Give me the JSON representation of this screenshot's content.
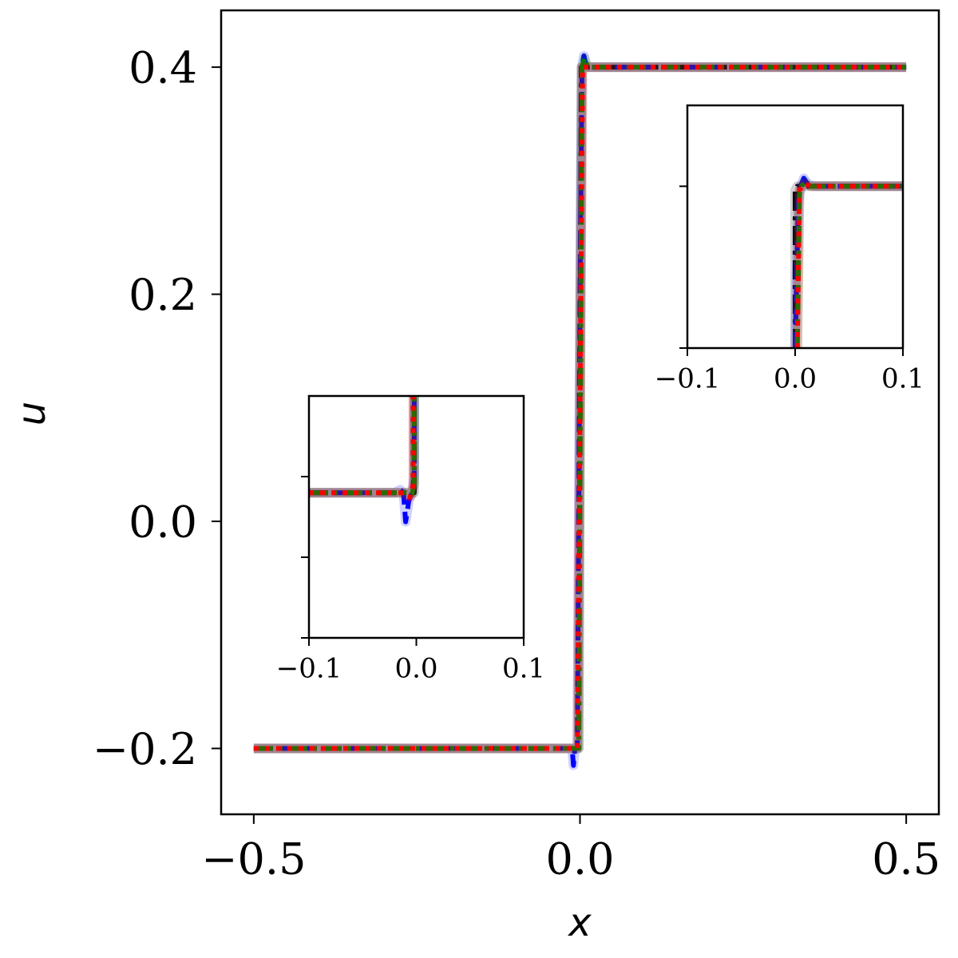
{
  "chart_data": [
    {
      "type": "line",
      "xlabel": "x",
      "ylabel": "u",
      "xlim": [
        -0.55,
        0.55
      ],
      "ylim": [
        -0.258,
        0.45
      ],
      "xticks": [
        -0.5,
        0.0,
        0.5
      ],
      "xtick_labels": [
        "−0.5",
        "0.0",
        "0.5"
      ],
      "yticks": [
        -0.2,
        0.0,
        0.2,
        0.4
      ],
      "ytick_labels": [
        "−0.2",
        "0.0",
        "0.2",
        "0.4"
      ],
      "grid": false,
      "legend": "none",
      "series": [
        {
          "color": "#000000",
          "style": "dashdot",
          "x": [
            -0.5,
            -0.002,
            0.002,
            0.5
          ],
          "y": [
            -0.2,
            -0.2,
            0.4,
            0.4
          ]
        },
        {
          "color": "#0000ff",
          "style": "dashed",
          "x": [
            -0.5,
            -0.012,
            -0.01,
            -0.008,
            -0.004,
            0.0,
            0.003,
            0.006,
            0.01,
            0.5
          ],
          "y": [
            -0.2,
            -0.2,
            -0.215,
            -0.2,
            -0.2,
            0.2,
            0.4,
            0.41,
            0.4,
            0.4
          ]
        },
        {
          "color": "#008000",
          "style": "dashdot",
          "x": [
            -0.5,
            -0.006,
            -0.002,
            0.003,
            0.007,
            0.012,
            0.5
          ],
          "y": [
            -0.2,
            -0.2,
            -0.2,
            0.4,
            0.408,
            0.4,
            0.4
          ]
        },
        {
          "color": "#ff0000",
          "style": "dotted",
          "x": [
            -0.5,
            -0.004,
            0.0,
            0.004,
            0.5
          ],
          "y": [
            -0.2,
            -0.2,
            0.1,
            0.4,
            0.4
          ]
        }
      ]
    },
    {
      "type": "line",
      "xlim": [
        -0.1,
        0.1
      ],
      "ylim": [
        -0.29,
        -0.14
      ],
      "xticks": [
        -0.1,
        0.0,
        0.1
      ],
      "xtick_labels": [
        "−0.1",
        "0.0",
        "0.1"
      ],
      "yticks": [
        -0.29,
        -0.24,
        -0.19
      ],
      "ytick_labels": [],
      "grid": false,
      "series": [
        {
          "color": "#000000",
          "style": "dashdot",
          "x": [
            -0.1,
            -0.015,
            -0.002,
            -0.002,
            -0.001
          ],
          "y": [
            -0.2,
            -0.2,
            -0.2,
            -0.15,
            0.0
          ]
        },
        {
          "color": "#0000ff",
          "style": "dashed",
          "x": [
            -0.1,
            -0.02,
            -0.015,
            -0.012,
            -0.01,
            -0.007,
            -0.004,
            -0.002,
            -0.002
          ],
          "y": [
            -0.2,
            -0.2,
            -0.198,
            -0.2,
            -0.218,
            -0.205,
            -0.2,
            -0.19,
            0.0
          ]
        },
        {
          "color": "#008000",
          "style": "dashdot",
          "x": [
            -0.1,
            -0.01,
            -0.004,
            -0.002,
            -0.002
          ],
          "y": [
            -0.2,
            -0.2,
            -0.201,
            -0.195,
            0.0
          ]
        },
        {
          "color": "#ff0000",
          "style": "dotted",
          "x": [
            -0.1,
            -0.012,
            -0.006,
            -0.003,
            -0.003
          ],
          "y": [
            -0.2,
            -0.2,
            -0.203,
            -0.195,
            0.0
          ]
        }
      ]
    },
    {
      "type": "line",
      "xlim": [
        -0.1,
        0.1
      ],
      "ylim": [
        0.2,
        0.5
      ],
      "xticks": [
        -0.1,
        0.0,
        0.1
      ],
      "xtick_labels": [
        "−0.1",
        "0.0",
        "0.1"
      ],
      "yticks": [
        0.2,
        0.4
      ],
      "ytick_labels": [],
      "grid": false,
      "series": [
        {
          "color": "#000000",
          "style": "dashdot",
          "x": [
            0.0,
            0.0,
            0.002,
            0.1
          ],
          "y": [
            0.2,
            0.395,
            0.4,
            0.4
          ]
        },
        {
          "color": "#0000ff",
          "style": "dashed",
          "x": [
            0.0,
            0.003,
            0.005,
            0.008,
            0.012,
            0.02,
            0.1
          ],
          "y": [
            0.2,
            0.38,
            0.4,
            0.41,
            0.402,
            0.4,
            0.4
          ]
        },
        {
          "color": "#008000",
          "style": "dashdot",
          "x": [
            0.002,
            0.004,
            0.006,
            0.009,
            0.014,
            0.1
          ],
          "y": [
            0.2,
            0.39,
            0.4,
            0.406,
            0.4,
            0.4
          ]
        },
        {
          "color": "#ff0000",
          "style": "dotted",
          "x": [
            0.002,
            0.004,
            0.008,
            0.015,
            0.1
          ],
          "y": [
            0.2,
            0.395,
            0.403,
            0.4,
            0.4
          ]
        }
      ]
    }
  ]
}
